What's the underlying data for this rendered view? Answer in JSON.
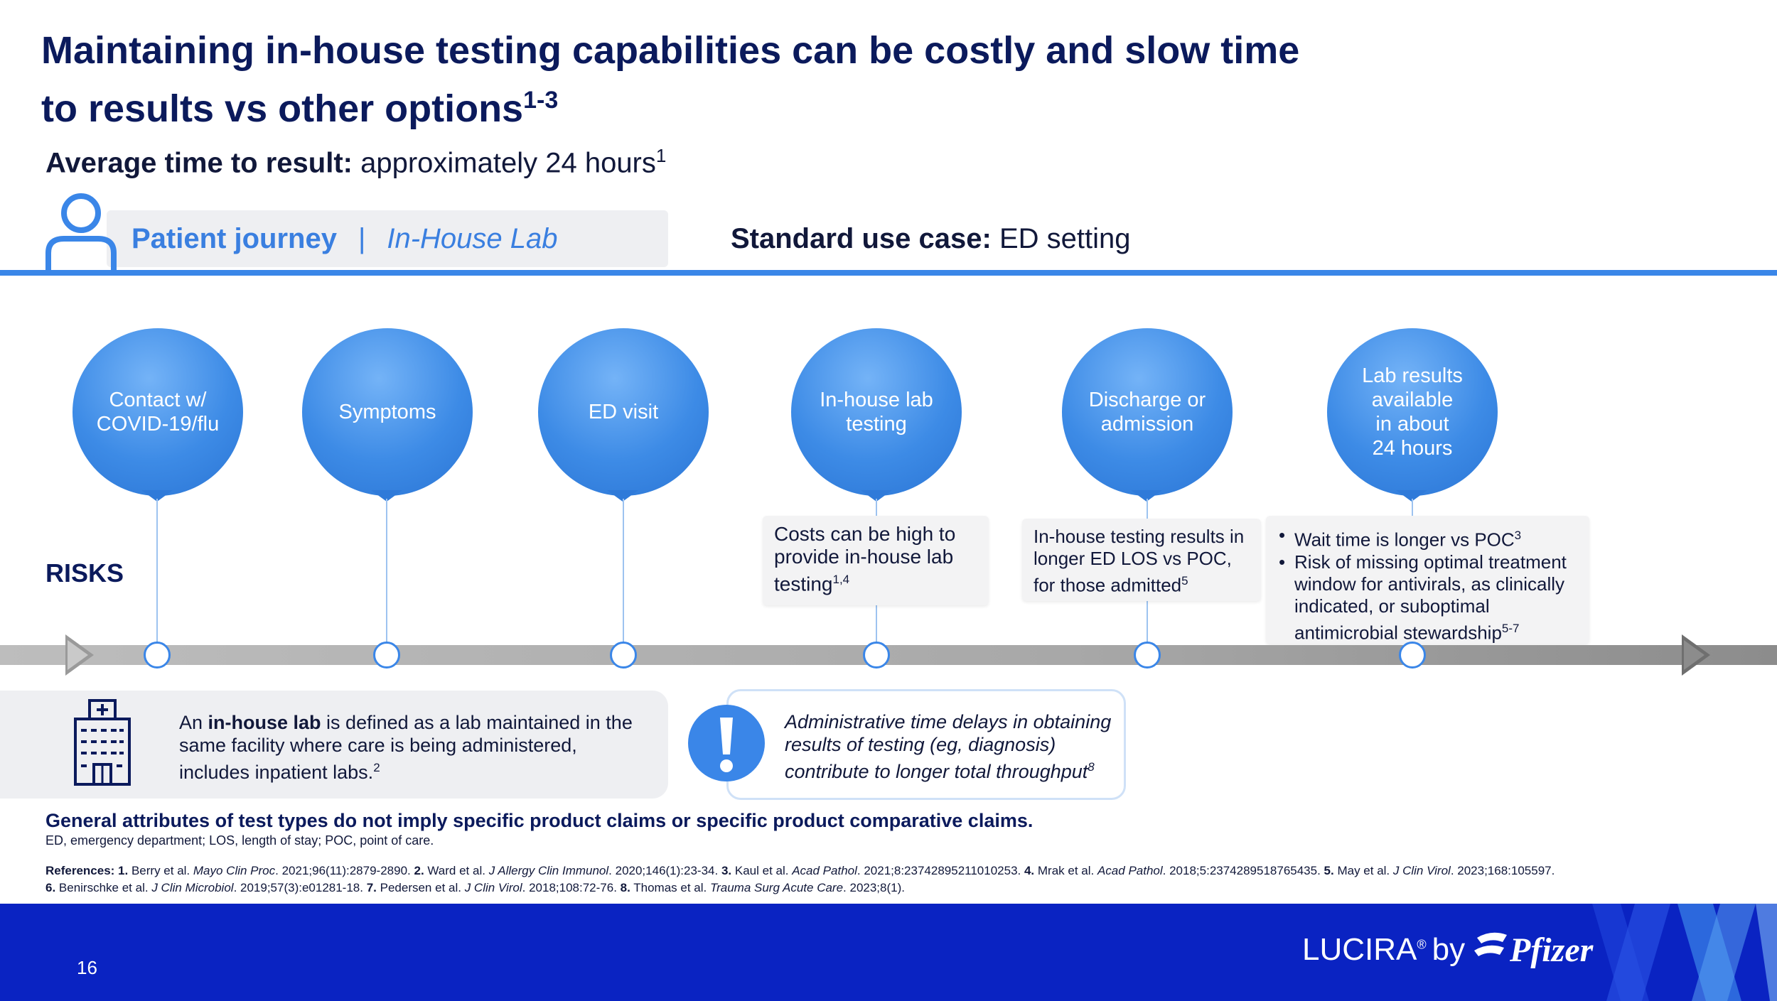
{
  "header": {
    "title_line1": "Maintaining in-house testing capabilities can be costly and slow time",
    "title_line2": "to results vs other options",
    "title_sup": "1-3",
    "avg_label": "Average time to result:",
    "avg_value": " approximately 24 hours",
    "avg_sup": "1"
  },
  "journey": {
    "label": "Patient journey",
    "separator": "|",
    "sub": "In-House Lab",
    "usecase_label": "Standard use case:",
    "usecase_value": " ED setting"
  },
  "risks_label": "RISKS",
  "steps": [
    {
      "label": "Contact w/\nCOVID-19/flu"
    },
    {
      "label": "Symptoms"
    },
    {
      "label": "ED visit"
    },
    {
      "label": "In-house lab\ntesting"
    },
    {
      "label": "Discharge or\nadmission"
    },
    {
      "label": "Lab results\navailable\nin about\n24 hours"
    }
  ],
  "risk_boxes": {
    "costs": {
      "text": "Costs can be high to provide in-house lab testing",
      "sup": "1,4"
    },
    "los": {
      "text": "In-house testing results in longer ED LOS vs POC, for those admitted",
      "sup": "5"
    },
    "wait": {
      "item1": "Wait time is longer vs POC",
      "item1_sup": "3",
      "item2": "Risk of missing optimal treatment window for antivirals, as clinically indicated, or suboptimal antimicrobial stewardship",
      "item2_sup": "5-7"
    }
  },
  "definition": {
    "pre": "An ",
    "bold": "in-house lab",
    "post": " is defined as a lab maintained in the same facility where care is being administered, includes inpatient labs.",
    "sup": "2"
  },
  "admin_note": {
    "text": "Administrative time delays in obtaining results of testing (eg, diagnosis) contribute to longer total throughput",
    "sup": "8"
  },
  "disclaimer": "General attributes of test types do not imply specific product claims or specific product comparative claims.",
  "abbreviations": "ED, emergency department; LOS, length of stay; POC, point of care.",
  "references": {
    "label": "References:",
    "r1n": " 1.",
    "r1a": " Berry et al. ",
    "r1j": "Mayo Clin Proc",
    "r1c": ". 2021;96(11):2879-2890.",
    "r2n": " 2.",
    "r2a": " Ward et al. ",
    "r2j": "J Allergy Clin Immunol",
    "r2c": ". 2020;146(1):23-34.",
    "r3n": " 3.",
    "r3a": " Kaul et al. ",
    "r3j": "Acad Pathol",
    "r3c": ". 2021;8:23742895211010253.",
    "r4n": " 4.",
    "r4a": " Mrak et al. ",
    "r4j": "Acad Pathol",
    "r4c": ". 2018;5:2374289518765435.",
    "r5n": " 5.",
    "r5a": " May et al. ",
    "r5j": "J Clin Virol",
    "r5c": ". 2023;168:105597.",
    "r6n": "6.",
    "r6a": " Benirschke et al. ",
    "r6j": "J Clin Microbiol",
    "r6c": ". 2019;57(3):e01281-18.",
    "r7n": " 7.",
    "r7a": " Pedersen et al. ",
    "r7j": "J Clin Virol",
    "r7c": ". 2018;108:72-76.",
    "r8n": " 8.",
    "r8a": " Thomas et al. ",
    "r8j": "Trauma Surg Acute Care",
    "r8c": ". 2023;8(1)."
  },
  "footer": {
    "page_number": "16",
    "brand": "LUCIRA",
    "brand_reg": "®",
    "by": "by",
    "partner": "Pfizer"
  },
  "colors": {
    "accent_blue": "#3a86e8",
    "title_navy": "#0b1a5c",
    "footer_blue": "#0a23c2"
  },
  "icons": {
    "person": "person-icon",
    "hospital": "hospital-building-icon",
    "alert": "exclamation-alert-icon",
    "pfizer": "pfizer-logo-icon"
  }
}
